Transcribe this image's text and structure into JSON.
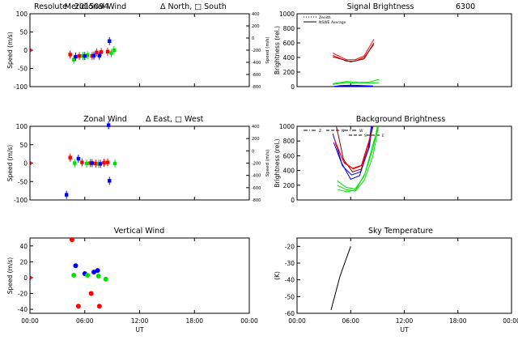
{
  "figure": {
    "station": "Resolute",
    "date_code": "2015094"
  },
  "chart_data": [
    {
      "id": "meridional-wind",
      "type": "scatter",
      "title": "Meridional Wind",
      "legend_note": "Δ North, □ South",
      "xlabel": "",
      "ylabel": "Speed (m/s)",
      "y2label": "Speed (m/s)",
      "xlim": [
        0,
        24
      ],
      "ylim": [
        -100,
        100
      ],
      "y2lim": [
        -800,
        400
      ],
      "xticks": [
        0,
        6,
        12,
        18,
        24
      ],
      "xticklabels": [
        "",
        "",
        "",
        "",
        ""
      ],
      "yticks": [
        -100,
        -50,
        0,
        50,
        100
      ],
      "yticklabels": [
        "-100",
        "-50",
        "0",
        "50",
        "100"
      ],
      "y2ticks": [
        -800,
        -600,
        -400,
        -200,
        0,
        200,
        400
      ],
      "y2ticklabels": [
        "-800",
        "-600",
        "-400",
        "-200",
        "0",
        "200",
        "400"
      ],
      "series": [
        {
          "name": "red",
          "color": "#ff0000",
          "points": [
            [
              4.4,
              -12
            ],
            [
              5.4,
              -16
            ],
            [
              6.8,
              -16
            ],
            [
              7.3,
              -6
            ],
            [
              7.8,
              -5
            ],
            [
              8.5,
              -4
            ]
          ]
        },
        {
          "name": "green",
          "color": "#00e000",
          "points": [
            [
              4.8,
              -26
            ],
            [
              5.8,
              -16
            ],
            [
              6.3,
              -14
            ],
            [
              8.9,
              -8
            ],
            [
              9.2,
              0
            ]
          ]
        },
        {
          "name": "blue",
          "color": "#0000ff",
          "points": [
            [
              5.0,
              -18
            ],
            [
              6.0,
              -16
            ],
            [
              7.0,
              -15
            ],
            [
              7.6,
              -15
            ],
            [
              8.7,
              25
            ]
          ]
        },
        {
          "name": "zero-marker",
          "color": "#ff0000",
          "points": [
            [
              0.02,
              0
            ]
          ]
        }
      ]
    },
    {
      "id": "zonal-wind",
      "type": "scatter",
      "title": "Zonal Wind",
      "legend_note": "Δ East, □ West",
      "xlabel": "",
      "ylabel": "Speed (m/s)",
      "y2label": "Speed (m/s)",
      "xlim": [
        0,
        24
      ],
      "ylim": [
        -100,
        100
      ],
      "y2lim": [
        -800,
        400
      ],
      "xticks": [
        0,
        6,
        12,
        18,
        24
      ],
      "xticklabels": [
        "",
        "",
        "",
        "",
        ""
      ],
      "yticks": [
        -100,
        -50,
        0,
        50,
        100
      ],
      "yticklabels": [
        "-100",
        "-50",
        "0",
        "50",
        "100"
      ],
      "y2ticks": [
        -800,
        -600,
        -400,
        -200,
        0,
        200,
        400
      ],
      "y2ticklabels": [
        "-800",
        "-600",
        "-400",
        "-200",
        "0",
        "200",
        "400"
      ],
      "series": [
        {
          "name": "red",
          "color": "#ff0000",
          "points": [
            [
              4.4,
              15
            ],
            [
              5.7,
              2
            ],
            [
              6.6,
              0
            ],
            [
              7.2,
              -1
            ],
            [
              8.1,
              1
            ],
            [
              8.5,
              2
            ]
          ]
        },
        {
          "name": "green",
          "color": "#00e000",
          "points": [
            [
              4.9,
              0
            ],
            [
              6.2,
              -1
            ],
            [
              7.5,
              -2
            ],
            [
              9.3,
              -1
            ]
          ]
        },
        {
          "name": "blue",
          "color": "#0000ff",
          "points": [
            [
              4.0,
              -86
            ],
            [
              5.3,
              12
            ],
            [
              6.8,
              0
            ],
            [
              7.7,
              -2
            ],
            [
              8.7,
              -48
            ],
            [
              8.6,
              103
            ]
          ]
        },
        {
          "name": "zero-marker",
          "color": "#ff0000",
          "points": [
            [
              0.02,
              0
            ]
          ]
        }
      ]
    },
    {
      "id": "vertical-wind",
      "type": "scatter",
      "title": "Vertical Wind",
      "xlabel": "UT",
      "ylabel": "Speed (m/s)",
      "xlim": [
        0,
        24
      ],
      "ylim": [
        -45,
        50
      ],
      "xticks": [
        0,
        6,
        12,
        18,
        24
      ],
      "xticklabels": [
        "00:00",
        "06:00",
        "12:00",
        "18:00",
        "00:00"
      ],
      "yticks": [
        -40,
        -20,
        0,
        20,
        40
      ],
      "yticklabels": [
        "-40",
        "-20",
        "0",
        "20",
        "40"
      ],
      "series": [
        {
          "name": "red",
          "color": "#ff0000",
          "points": [
            [
              4.6,
              48
            ],
            [
              5.3,
              -36
            ],
            [
              6.7,
              -20
            ],
            [
              7.6,
              -36
            ]
          ]
        },
        {
          "name": "blue",
          "color": "#0000ff",
          "points": [
            [
              5.0,
              15
            ],
            [
              6.0,
              5
            ],
            [
              7.0,
              7
            ],
            [
              7.4,
              9
            ]
          ]
        },
        {
          "name": "green",
          "color": "#00e000",
          "points": [
            [
              4.8,
              3
            ],
            [
              6.3,
              3
            ],
            [
              7.5,
              2
            ],
            [
              8.3,
              -2
            ]
          ]
        },
        {
          "name": "zero-marker",
          "color": "#ff0000",
          "points": [
            [
              0.02,
              0
            ]
          ]
        }
      ]
    },
    {
      "id": "signal-brightness",
      "type": "line",
      "title": "Signal Brightness",
      "wavelength": "6300",
      "xlabel": "",
      "ylabel": "Brightness (rel.)",
      "xlim": [
        0,
        24
      ],
      "ylim": [
        0,
        1000
      ],
      "xticks": [
        0,
        6,
        12,
        18,
        24
      ],
      "xticklabels": [
        "",
        "",
        "",
        "",
        ""
      ],
      "yticks": [
        0,
        200,
        400,
        600,
        800,
        1000
      ],
      "yticklabels": [
        "0",
        "200",
        "400",
        "600",
        "800",
        "1000"
      ],
      "legend": [
        {
          "label": "Zenith",
          "style": "dotted"
        },
        {
          "label": "NSWE Average",
          "style": "solid"
        }
      ],
      "series": [
        {
          "name": "red-1",
          "color": "#ff0000",
          "points": [
            [
              4.0,
              460
            ],
            [
              5.5,
              370
            ],
            [
              6.5,
              370
            ],
            [
              7.5,
              420
            ],
            [
              8.6,
              650
            ]
          ]
        },
        {
          "name": "red-2",
          "color": "#ff0000",
          "points": [
            [
              4.0,
              430
            ],
            [
              5.5,
              350
            ],
            [
              6.5,
              350
            ],
            [
              7.5,
              400
            ],
            [
              8.6,
              580
            ]
          ]
        },
        {
          "name": "darkred",
          "color": "#8b0000",
          "points": [
            [
              4.0,
              410
            ],
            [
              6.0,
              340
            ],
            [
              7.5,
              380
            ],
            [
              8.6,
              600
            ]
          ]
        },
        {
          "name": "green-1",
          "color": "#00e000",
          "points": [
            [
              4.0,
              40
            ],
            [
              5.5,
              70
            ],
            [
              7.0,
              60
            ],
            [
              8.0,
              60
            ],
            [
              9.2,
              100
            ]
          ]
        },
        {
          "name": "green-2",
          "color": "#00e000",
          "points": [
            [
              4.0,
              30
            ],
            [
              5.5,
              55
            ],
            [
              7.0,
              45
            ],
            [
              8.5,
              50
            ],
            [
              9.2,
              55
            ]
          ]
        },
        {
          "name": "blue-1",
          "color": "#0000ff",
          "points": [
            [
              4.0,
              0
            ],
            [
              4.8,
              15
            ],
            [
              6.0,
              20
            ],
            [
              8.5,
              10
            ]
          ]
        },
        {
          "name": "blue-2",
          "color": "#0000ff",
          "points": [
            [
              4.2,
              5
            ],
            [
              5.5,
              10
            ],
            [
              8.5,
              5
            ]
          ]
        }
      ]
    },
    {
      "id": "background-brightness",
      "type": "line",
      "title": "Background Brightness",
      "xlabel": "",
      "ylabel": "Brightness (rel.)",
      "xlim": [
        0,
        24
      ],
      "ylim": [
        0,
        1000
      ],
      "xticks": [
        0,
        6,
        12,
        18,
        24
      ],
      "xticklabels": [
        "",
        "",
        "",
        "",
        ""
      ],
      "yticks": [
        0,
        200,
        400,
        600,
        800,
        1000
      ],
      "yticklabels": [
        "0",
        "200",
        "400",
        "600",
        "800",
        "1000"
      ],
      "legend": [
        {
          "label": "Z",
          "style": "dash-dot"
        },
        {
          "label": "N",
          "style": "dashed"
        },
        {
          "label": "S",
          "style": "dashed"
        },
        {
          "label": "W",
          "style": "dash-dot"
        },
        {
          "label": "E",
          "style": "dashed"
        }
      ],
      "series": [
        {
          "name": "blue-1",
          "color": "#0000ff",
          "points": [
            [
              4.0,
              900
            ],
            [
              5.0,
              500
            ],
            [
              6.0,
              280
            ],
            [
              7.0,
              330
            ],
            [
              8.0,
              700
            ],
            [
              8.3,
              1000
            ]
          ]
        },
        {
          "name": "blue-2",
          "color": "#0000ff",
          "points": [
            [
              4.1,
              780
            ],
            [
              5.1,
              460
            ],
            [
              6.1,
              340
            ],
            [
              7.1,
              380
            ],
            [
              8.1,
              720
            ],
            [
              8.4,
              1000
            ]
          ]
        },
        {
          "name": "darkred-1",
          "color": "#8b0000",
          "points": [
            [
              4.4,
              1000
            ],
            [
              5.2,
              550
            ],
            [
              6.2,
              380
            ],
            [
              7.2,
              420
            ],
            [
              8.2,
              850
            ],
            [
              8.5,
              1000
            ]
          ]
        },
        {
          "name": "red-1",
          "color": "#ff0000",
          "points": [
            [
              4.2,
              820
            ],
            [
              5.2,
              520
            ],
            [
              6.2,
              430
            ],
            [
              7.2,
              470
            ],
            [
              8.2,
              860
            ]
          ]
        },
        {
          "name": "red-2",
          "color": "#ff0000",
          "points": [
            [
              4.3,
              760
            ],
            [
              5.3,
              500
            ],
            [
              6.3,
              420
            ],
            [
              7.3,
              470
            ],
            [
              8.3,
              900
            ]
          ]
        },
        {
          "name": "green-1",
          "color": "#00e000",
          "points": [
            [
              4.5,
              260
            ],
            [
              5.5,
              170
            ],
            [
              6.5,
              150
            ],
            [
              7.5,
              320
            ],
            [
              8.5,
              700
            ],
            [
              9.0,
              1000
            ]
          ]
        },
        {
          "name": "green-2",
          "color": "#00e000",
          "points": [
            [
              4.5,
              200
            ],
            [
              5.5,
              140
            ],
            [
              6.5,
              120
            ],
            [
              7.5,
              260
            ],
            [
              8.5,
              600
            ],
            [
              9.1,
              1000
            ]
          ]
        },
        {
          "name": "green-3",
          "color": "#00e000",
          "points": [
            [
              4.6,
              140
            ],
            [
              5.6,
              110
            ],
            [
              6.6,
              140
            ],
            [
              7.6,
              360
            ],
            [
              8.6,
              800
            ],
            [
              9.1,
              1000
            ]
          ]
        }
      ]
    },
    {
      "id": "sky-temperature",
      "type": "line",
      "title": "Sky Temperature",
      "xlabel": "UT",
      "ylabel": "(K)",
      "xlim": [
        0,
        24
      ],
      "ylim": [
        -60,
        -15
      ],
      "xticks": [
        0,
        6,
        12,
        18,
        24
      ],
      "xticklabels": [
        "00:00",
        "06:00",
        "12:00",
        "18:00",
        "00:00"
      ],
      "yticks": [
        -60,
        -50,
        -40,
        -30,
        -20
      ],
      "yticklabels": [
        "-60",
        "-50",
        "-40",
        "-30",
        "-20"
      ],
      "series": [
        {
          "name": "sky",
          "color": "#000000",
          "points": [
            [
              3.8,
              -58
            ],
            [
              4.3,
              -48
            ],
            [
              4.8,
              -38
            ],
            [
              5.4,
              -29
            ],
            [
              6.0,
              -20
            ]
          ]
        }
      ]
    }
  ]
}
